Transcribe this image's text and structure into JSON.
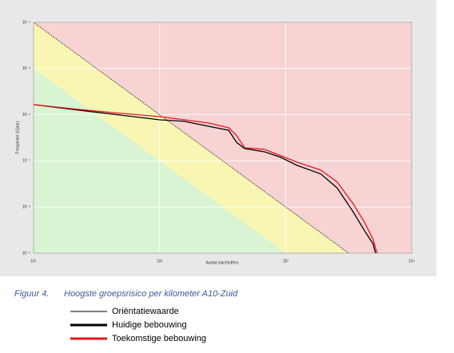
{
  "chart_data": {
    "type": "line",
    "x_label": "Aantal slachtoffers",
    "y_label": "Frequentie (1/jaar)",
    "xscale": "log",
    "yscale": "log",
    "grid": true,
    "xlim": [
      10,
      10000
    ],
    "ylim": [
      1e-09,
      0.0001
    ],
    "xticks": [
      {
        "value": 10,
        "label": "10¹"
      },
      {
        "value": 100,
        "label": "10²"
      },
      {
        "value": 1000,
        "label": "10³"
      },
      {
        "value": 10000,
        "label": "10⁴"
      }
    ],
    "yticks": [
      {
        "value": 0.0001,
        "label": "10⁻⁴"
      },
      {
        "value": 1e-05,
        "label": "10⁻⁵"
      },
      {
        "value": 1e-06,
        "label": "10⁻⁶"
      },
      {
        "value": 1e-07,
        "label": "10⁻⁷"
      },
      {
        "value": 1e-08,
        "label": "10⁻⁸"
      },
      {
        "value": 1e-09,
        "label": "10⁻⁹"
      }
    ],
    "zones": {
      "colors": [
        "#f8d3d3",
        "#f9f6b4",
        "#d9f4d2"
      ],
      "lower_boundary": {
        "x": [
          10,
          1000
        ],
        "values": [
          1e-05,
          1e-09
        ]
      }
    },
    "series": [
      {
        "name": "Oriëntatiewaarde",
        "color": "#000000",
        "dotted": true,
        "width": 1,
        "x": [
          10,
          3162
        ],
        "values": [
          0.0001,
          1e-09
        ]
      },
      {
        "name": "Huidige bebouwing",
        "color": "#000000",
        "dotted": false,
        "width": 1.3,
        "x": [
          10,
          23,
          49,
          100,
          157,
          245,
          353,
          409,
          473,
          682,
          916,
          1230,
          1900,
          2560,
          3430,
          4280,
          4940,
          5170
        ],
        "values": [
          1.65e-06,
          1.25e-06,
          9.8e-07,
          7.75e-07,
          7.2e-07,
          5.6e-07,
          4.6e-07,
          2.5e-07,
          1.85e-07,
          1.57e-07,
          1.19e-07,
          8e-08,
          5.2e-08,
          2.6e-08,
          7.9e-09,
          2.9e-09,
          1.6e-09,
          1e-09
        ]
      },
      {
        "name": "Toekomstige bebouwing",
        "color": "#e8141c",
        "dotted": false,
        "width": 1.3,
        "x": [
          10,
          23,
          49,
          100,
          157,
          245,
          353,
          409,
          473,
          682,
          916,
          1230,
          1900,
          2560,
          3430,
          4280,
          4940,
          5320
        ],
        "values": [
          1.65e-06,
          1.3e-06,
          1.07e-06,
          9.1e-07,
          7.75e-07,
          6.6e-07,
          5.2e-07,
          3.5e-07,
          1.92e-07,
          1.77e-07,
          1.29e-07,
          9.4e-08,
          6.3e-08,
          3.5e-08,
          1.18e-08,
          4.4e-09,
          2e-09,
          1e-09
        ]
      }
    ]
  },
  "caption": {
    "label": "Figuur 4.",
    "text": "Hoogste groepsrisico per kilometer A10-Zuid"
  }
}
